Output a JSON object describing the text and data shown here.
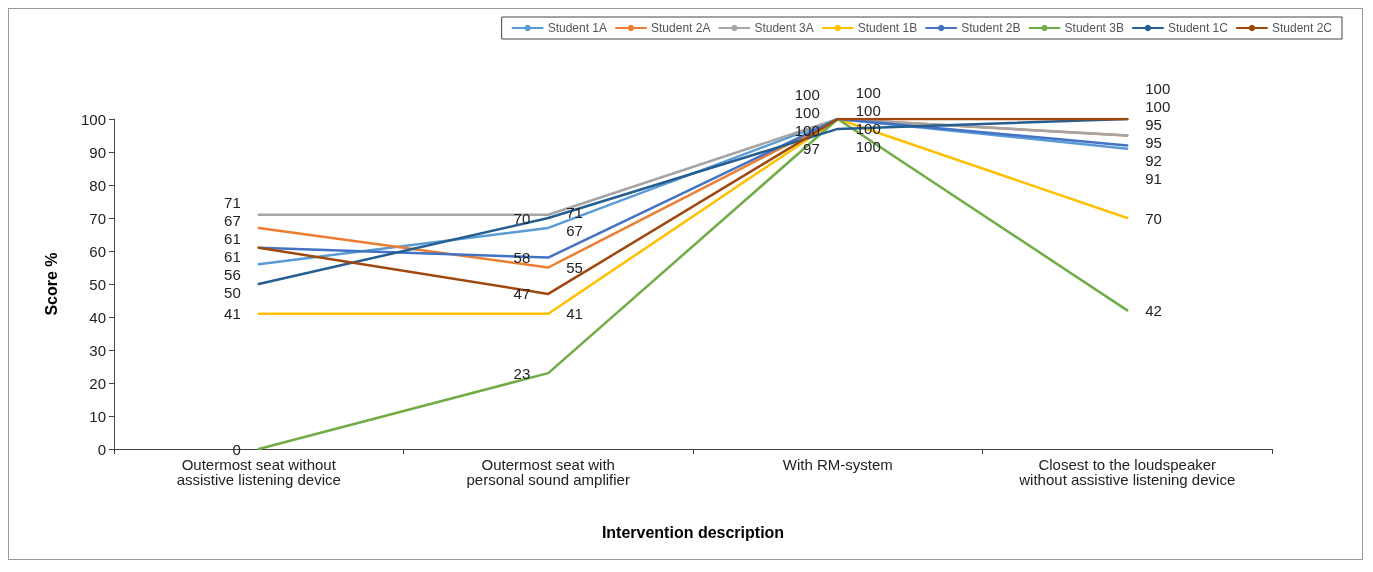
{
  "chart_data": {
    "type": "line",
    "xlabel": "Intervention description",
    "ylabel": "Score %",
    "categories": [
      "Outermost seat without\nassistive listening device",
      "Outermost seat with\npersonal sound amplifier",
      "With RM-system",
      "Closest to the loudspeaker\nwithout assistive listening device"
    ],
    "ylim": [
      0,
      100
    ],
    "yticks": [
      0,
      10,
      20,
      30,
      40,
      50,
      60,
      70,
      80,
      90,
      100
    ],
    "series": [
      {
        "name": "Student 1A",
        "color": "#5b9bd5",
        "values": [
          56,
          67,
          100,
          91
        ]
      },
      {
        "name": "Student 2A",
        "color": "#ed7d31",
        "values": [
          67,
          55,
          100,
          95
        ]
      },
      {
        "name": "Student 3A",
        "color": "#a5a5a5",
        "values": [
          71,
          71,
          100,
          95
        ]
      },
      {
        "name": "Student 1B",
        "color": "#ffc000",
        "values": [
          41,
          41,
          100,
          70
        ]
      },
      {
        "name": "Student 2B",
        "color": "#4472c4",
        "values": [
          61,
          58,
          100,
          92
        ]
      },
      {
        "name": "Student 3B",
        "color": "#70ad47",
        "values": [
          0,
          23,
          100,
          42
        ]
      },
      {
        "name": "Student 1C",
        "color": "#255e91",
        "values": [
          50,
          70,
          97,
          100
        ]
      },
      {
        "name": "Student 2C",
        "color": "#9e480e",
        "values": [
          61,
          47,
          100,
          100
        ]
      }
    ],
    "data_labels": true,
    "legend": "top right",
    "grid": false,
    "marker": "none",
    "line_style": "solid"
  }
}
